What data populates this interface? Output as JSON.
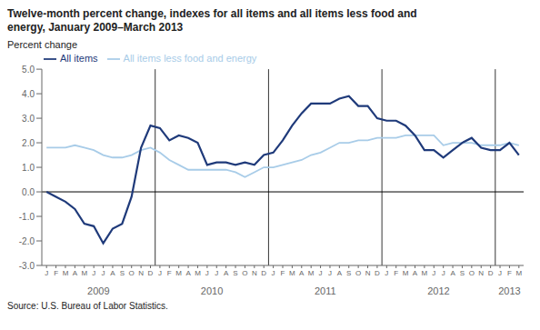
{
  "chart_data": {
    "type": "line",
    "title": [
      "Twelve-month percent change, indexes for all items and all items less food and",
      "energy, January 2009–March 2013"
    ],
    "ylabel": "Percent change",
    "source": "Source: U.S. Bureau of Labor Statistics.",
    "categories": [
      "J",
      "F",
      "M",
      "A",
      "M",
      "J",
      "J",
      "A",
      "S",
      "O",
      "N",
      "D",
      "J",
      "F",
      "M",
      "A",
      "M",
      "J",
      "J",
      "A",
      "S",
      "O",
      "N",
      "D",
      "J",
      "F",
      "M",
      "A",
      "M",
      "J",
      "J",
      "A",
      "S",
      "O",
      "N",
      "D",
      "J",
      "F",
      "M",
      "A",
      "M",
      "J",
      "J",
      "A",
      "S",
      "O",
      "N",
      "D",
      "J",
      "F",
      "M"
    ],
    "years": [
      "2009",
      "2010",
      "2011",
      "2012",
      "2013"
    ],
    "series": [
      {
        "name": "All items",
        "color": "#1f3a7a",
        "values": [
          0.0,
          -0.2,
          -0.4,
          -0.7,
          -1.3,
          -1.4,
          -2.1,
          -1.5,
          -1.3,
          -0.2,
          1.8,
          2.7,
          2.6,
          2.1,
          2.3,
          2.2,
          2.0,
          1.1,
          1.2,
          1.2,
          1.1,
          1.2,
          1.1,
          1.5,
          1.6,
          2.1,
          2.7,
          3.2,
          3.6,
          3.6,
          3.6,
          3.8,
          3.9,
          3.5,
          3.5,
          3.0,
          2.9,
          2.9,
          2.7,
          2.3,
          1.7,
          1.7,
          1.4,
          1.7,
          2.0,
          2.2,
          1.8,
          1.7,
          1.7,
          2.0,
          1.5
        ]
      },
      {
        "name": "All items less food and energy",
        "color": "#a8cce8",
        "values": [
          1.8,
          1.8,
          1.8,
          1.9,
          1.8,
          1.7,
          1.5,
          1.4,
          1.4,
          1.5,
          1.7,
          1.8,
          1.6,
          1.3,
          1.1,
          0.9,
          0.9,
          0.9,
          0.9,
          0.9,
          0.8,
          0.6,
          0.8,
          1.0,
          1.0,
          1.1,
          1.2,
          1.3,
          1.5,
          1.6,
          1.8,
          2.0,
          2.0,
          2.1,
          2.1,
          2.2,
          2.2,
          2.2,
          2.3,
          2.3,
          2.3,
          2.3,
          1.9,
          2.0,
          2.0,
          2.0,
          1.9,
          1.9,
          1.9,
          2.0,
          1.9
        ]
      }
    ],
    "ylim": [
      -3.0,
      5.0
    ],
    "yticks": [
      {
        "value": -3.0,
        "label": "-3.0"
      },
      {
        "value": -2.0,
        "label": "-2.0"
      },
      {
        "value": -1.0,
        "label": "-1.0"
      },
      {
        "value": 0.0,
        "label": "0.0"
      },
      {
        "value": 1.0,
        "label": "1.0"
      },
      {
        "value": 2.0,
        "label": "2.0"
      },
      {
        "value": 3.0,
        "label": "3.0"
      },
      {
        "value": 4.0,
        "label": "4.0"
      },
      {
        "value": 5.0,
        "label": "5.0"
      }
    ],
    "legend": "upper left",
    "grid": false
  }
}
